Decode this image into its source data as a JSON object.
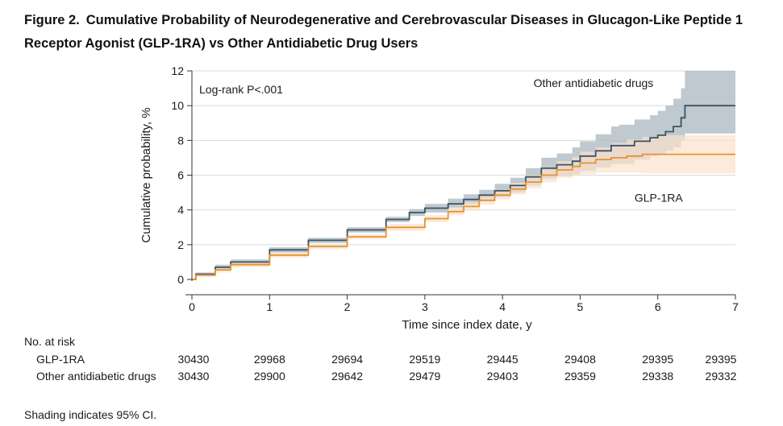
{
  "figure": {
    "label": "Figure 2.",
    "title": "Cumulative Probability of Neurodegenerative and Cerebrovascular Diseases in Glucagon-Like Peptide 1 Receptor Agonist (GLP-1RA) vs Other Antidiabetic Drug Users"
  },
  "footnote": "Shading indicates 95% CI.",
  "chart_data": {
    "type": "line",
    "title": "",
    "xlabel": "Time since index date, y",
    "ylabel": "Cumulative probability, %",
    "xlim": [
      0,
      7
    ],
    "ylim": [
      0,
      12
    ],
    "x_ticks": [
      0,
      1,
      2,
      3,
      4,
      5,
      6,
      7
    ],
    "y_ticks": [
      0,
      2,
      4,
      6,
      8,
      10,
      12
    ],
    "grid": true,
    "annotation": "Log-rank P<.001",
    "series": [
      {
        "name": "Other antidiabetic drugs",
        "color": "#3d5361",
        "ci_color": "#aab7bf",
        "x": [
          0,
          0.05,
          0.3,
          0.5,
          1.0,
          1.5,
          2.0,
          2.5,
          2.8,
          3.0,
          3.3,
          3.5,
          3.7,
          3.9,
          4.1,
          4.3,
          4.5,
          4.7,
          4.9,
          5.0,
          5.2,
          5.4,
          5.5,
          5.7,
          5.9,
          6.0,
          6.1,
          6.2,
          6.3,
          6.35,
          7.0
        ],
        "y": [
          0,
          0.3,
          0.7,
          1.0,
          1.7,
          2.25,
          2.85,
          3.45,
          3.85,
          4.1,
          4.35,
          4.6,
          4.85,
          5.1,
          5.4,
          5.9,
          6.4,
          6.6,
          6.8,
          7.1,
          7.4,
          7.7,
          7.7,
          7.95,
          8.15,
          8.3,
          8.5,
          8.8,
          9.3,
          10.0,
          10.0
        ],
        "ci_lower": [
          0,
          0.2,
          0.55,
          0.85,
          1.55,
          2.1,
          2.7,
          3.3,
          3.65,
          3.85,
          4.1,
          4.3,
          4.55,
          4.75,
          5.0,
          5.4,
          5.8,
          5.95,
          6.05,
          6.25,
          6.45,
          6.65,
          6.65,
          6.9,
          7.1,
          7.2,
          7.4,
          7.6,
          8.0,
          8.4,
          8.4
        ],
        "ci_upper": [
          0,
          0.4,
          0.85,
          1.15,
          1.85,
          2.4,
          3.0,
          3.6,
          4.05,
          4.35,
          4.65,
          4.9,
          5.15,
          5.5,
          5.85,
          6.4,
          7.0,
          7.25,
          7.6,
          7.95,
          8.35,
          8.8,
          8.9,
          9.2,
          9.45,
          9.7,
          10.0,
          10.4,
          11.0,
          12.0,
          12.0
        ]
      },
      {
        "name": "GLP-1RA",
        "color": "#e8922e",
        "ci_color": "#fbe1cc",
        "x": [
          0,
          0.05,
          0.3,
          0.5,
          1.0,
          1.5,
          2.0,
          2.5,
          3.0,
          3.3,
          3.5,
          3.7,
          3.9,
          4.1,
          4.3,
          4.5,
          4.7,
          4.9,
          5.0,
          5.2,
          5.4,
          5.6,
          5.8,
          6.0,
          7.0
        ],
        "y": [
          0,
          0.25,
          0.55,
          0.85,
          1.4,
          1.9,
          2.45,
          3.0,
          3.5,
          3.9,
          4.2,
          4.55,
          4.85,
          5.2,
          5.6,
          6.0,
          6.3,
          6.5,
          6.7,
          6.9,
          7.0,
          7.1,
          7.2,
          7.2,
          7.2
        ],
        "ci_lower": [
          0,
          0.15,
          0.4,
          0.7,
          1.25,
          1.75,
          2.3,
          2.8,
          3.3,
          3.7,
          3.95,
          4.3,
          4.6,
          4.9,
          5.25,
          5.6,
          5.85,
          5.95,
          6.05,
          6.15,
          6.15,
          6.15,
          6.1,
          6.1,
          6.1
        ],
        "ci_upper": [
          0,
          0.35,
          0.7,
          1.0,
          1.55,
          2.05,
          2.6,
          3.2,
          3.7,
          4.15,
          4.45,
          4.85,
          5.15,
          5.55,
          6.0,
          6.45,
          6.8,
          7.05,
          7.35,
          7.6,
          7.85,
          8.05,
          8.2,
          8.3,
          8.3
        ]
      }
    ],
    "series_labels": [
      {
        "text": "Other antidiabetic drugs",
        "series": 0,
        "at_x": 4.4,
        "at_y": 11.3
      },
      {
        "text": "GLP-1RA",
        "series": 1,
        "at_x": 5.7,
        "at_y": 4.7
      }
    ],
    "risk_table": {
      "header": "No. at risk",
      "times": [
        0,
        1,
        2,
        3,
        4,
        5,
        6,
        7
      ],
      "rows": [
        {
          "label": "GLP-1RA",
          "values": [
            "30430",
            "29968",
            "29694",
            "29519",
            "29445",
            "29408",
            "29395",
            "29395"
          ]
        },
        {
          "label": "Other antidiabetic drugs",
          "values": [
            "30430",
            "29900",
            "29642",
            "29479",
            "29403",
            "29359",
            "29338",
            "29332"
          ]
        }
      ]
    }
  }
}
